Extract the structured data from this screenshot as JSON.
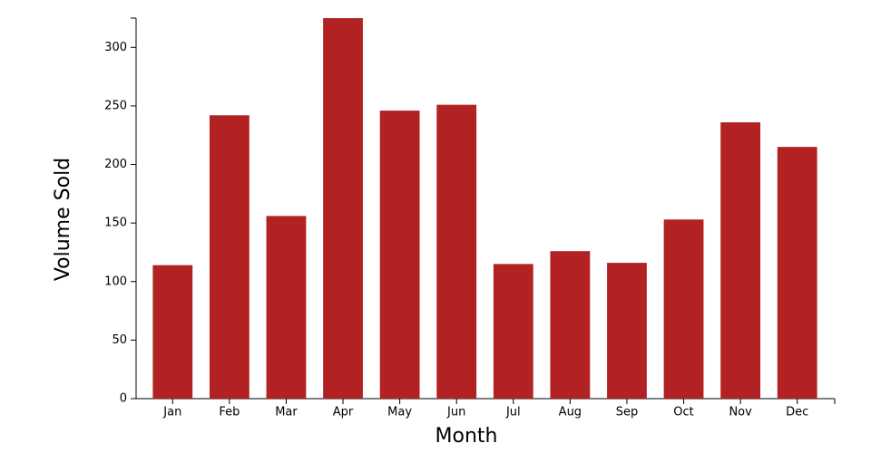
{
  "chart_data": {
    "type": "bar",
    "x_label": "Month",
    "y_label": "Volume Sold",
    "categories": [
      "Jan",
      "Feb",
      "Mar",
      "Apr",
      "May",
      "Jun",
      "Jul",
      "Aug",
      "Sep",
      "Oct",
      "Nov",
      "Dec"
    ],
    "values": [
      114,
      242,
      156,
      325,
      246,
      251,
      115,
      126,
      116,
      153,
      236,
      215
    ],
    "color": "#b22222",
    "ylim": [
      0,
      325
    ],
    "yticks": [
      0,
      50,
      100,
      150,
      200,
      250,
      300
    ],
    "grid": false
  }
}
